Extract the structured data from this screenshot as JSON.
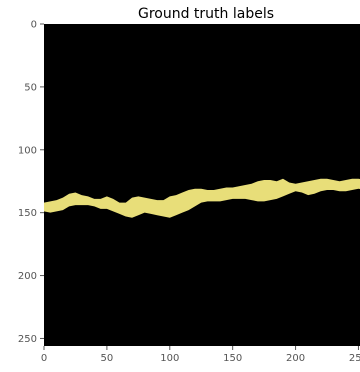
{
  "figure": {
    "title": "Ground truth labels",
    "x_ticks": [
      "0",
      "50",
      "100",
      "150",
      "200",
      "250"
    ],
    "y_ticks": [
      "0",
      "50",
      "100",
      "150",
      "200",
      "250"
    ],
    "x_range": [
      0,
      256
    ],
    "y_range": [
      0,
      256
    ],
    "background_color": "#000000",
    "label_color": "#e8de79",
    "label_band": {
      "x": [
        0,
        5,
        10,
        15,
        20,
        25,
        30,
        35,
        40,
        45,
        50,
        55,
        60,
        65,
        70,
        75,
        80,
        85,
        90,
        95,
        100,
        105,
        110,
        115,
        120,
        125,
        130,
        135,
        140,
        145,
        150,
        155,
        160,
        165,
        170,
        175,
        180,
        185,
        190,
        195,
        200,
        205,
        210,
        215,
        220,
        225,
        230,
        235,
        240,
        245,
        250,
        256
      ],
      "top": [
        142,
        141,
        140,
        138,
        135,
        134,
        136,
        137,
        139,
        139,
        137,
        139,
        142,
        142,
        138,
        137,
        138,
        139,
        140,
        140,
        137,
        136,
        134,
        132,
        131,
        131,
        132,
        132,
        131,
        130,
        130,
        129,
        128,
        127,
        125,
        124,
        124,
        125,
        123,
        126,
        127,
        126,
        125,
        124,
        123,
        123,
        124,
        125,
        124,
        123,
        123,
        124
      ],
      "bottom": [
        149,
        150,
        149,
        148,
        145,
        144,
        144,
        144,
        145,
        147,
        147,
        149,
        151,
        153,
        154,
        152,
        150,
        151,
        152,
        153,
        154,
        152,
        150,
        148,
        145,
        142,
        141,
        141,
        141,
        140,
        139,
        139,
        139,
        140,
        141,
        141,
        140,
        139,
        137,
        135,
        133,
        134,
        136,
        135,
        133,
        132,
        132,
        133,
        133,
        132,
        131,
        132
      ]
    }
  }
}
